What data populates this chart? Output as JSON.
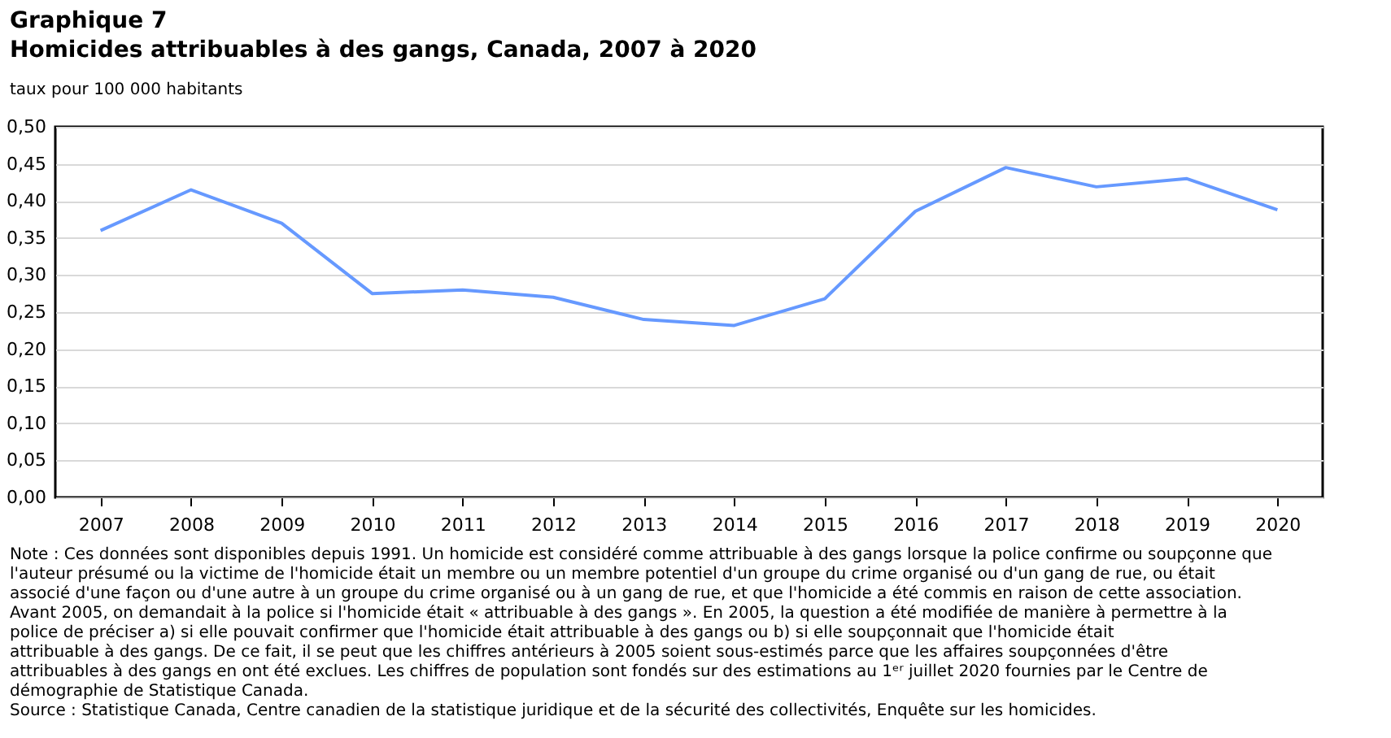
{
  "chart_data": {
    "type": "line",
    "title": "Graphique 7",
    "subtitle": "Homicides attribuables à des gangs, Canada, 2007 à 2020",
    "ylabel": "taux pour 100 000 habitants",
    "categories": [
      "2007",
      "2008",
      "2009",
      "2010",
      "2011",
      "2012",
      "2013",
      "2014",
      "2015",
      "2016",
      "2017",
      "2018",
      "2019",
      "2020"
    ],
    "series": [
      {
        "color": "#6699ff",
        "values": [
          0.36,
          0.415,
          0.37,
          0.275,
          0.28,
          0.27,
          0.24,
          0.232,
          0.268,
          0.386,
          0.445,
          0.419,
          0.43,
          0.388
        ]
      }
    ],
    "ylim": [
      0,
      0.5
    ],
    "yticks": [
      {
        "value": 0,
        "label": "0,00"
      },
      {
        "value": 0.05,
        "label": "0,05"
      },
      {
        "value": 0.1,
        "label": "0,10"
      },
      {
        "value": 0.15,
        "label": "0,15"
      },
      {
        "value": 0.2,
        "label": "0,20"
      },
      {
        "value": 0.25,
        "label": "0,25"
      },
      {
        "value": 0.3,
        "label": "0,30"
      },
      {
        "value": 0.35,
        "label": "0,35"
      },
      {
        "value": 0.4,
        "label": "0,40"
      },
      {
        "value": 0.45,
        "label": "0,45"
      },
      {
        "value": 0.5,
        "label": "0,50"
      }
    ],
    "grid": "y",
    "marker": "none",
    "line_style": "solid",
    "annotations": [
      "Note : Ces données sont disponibles depuis 1991. Un homicide est considéré comme attribuable à des gangs lorsque la police confirme ou soupçonne que l'auteur présumé ou la victime de l'homicide était un membre ou un membre potentiel d'un groupe du crime organisé ou d'un gang de rue, ou était associé d'une façon ou d'une autre à un groupe du crime organisé ou à un gang de rue, et que l'homicide a été commis en raison de cette association. Avant 2005, on demandait à la police si l'homicide était « attribuable à des gangs ». En 2005, la question a été modifiée de manière à permettre à la police de préciser a) si elle pouvait confirmer que l'homicide était attribuable à des gangs ou b) si elle soupçonnait que l'homicide était attribuable à des gangs. De ce fait, il se peut que les chiffres antérieurs à 2005 soient sous-estimés parce que les affaires soupçonnées d'être attribuables à des gangs en ont été exclues. Les chiffres de population sont fondés sur des estimations au 1ᵉʳ juillet 2020 fournies par le Centre de démographie de Statistique Canada.",
      "Source : Statistique Canada, Centre canadien de la statistique juridique et de la sécurité des collectivités, Enquête sur les homicides."
    ]
  }
}
